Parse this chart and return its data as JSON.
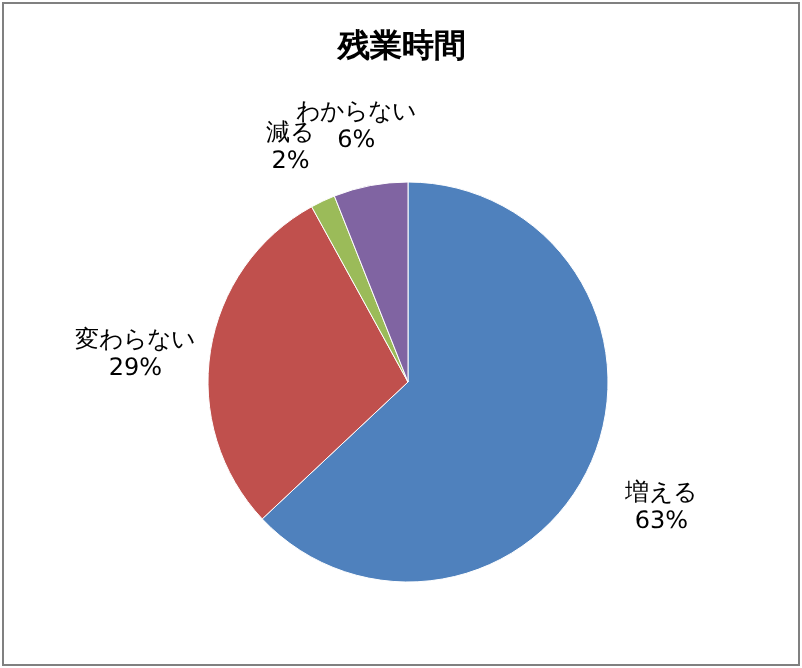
{
  "chart_data": {
    "type": "pie",
    "title": "残業時間",
    "categories": [
      "増える",
      "変わらない",
      "減る",
      "わからない"
    ],
    "values": [
      63,
      29,
      2,
      6
    ],
    "value_labels": [
      "63%",
      "29%",
      "2%",
      "6%"
    ],
    "colors": [
      "#4f81bd",
      "#c0504d",
      "#9bbb59",
      "#8064a2"
    ]
  }
}
